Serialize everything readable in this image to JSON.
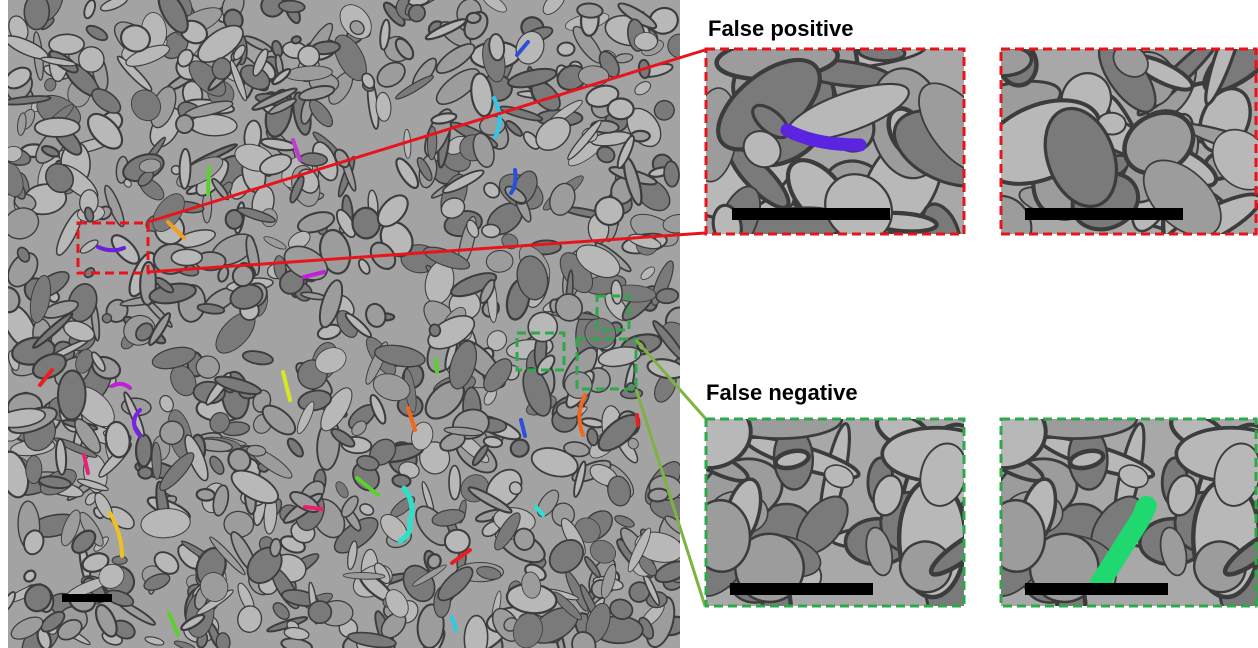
{
  "labels": {
    "false_positive": "False positive",
    "false_negative": "False negative"
  }
}
